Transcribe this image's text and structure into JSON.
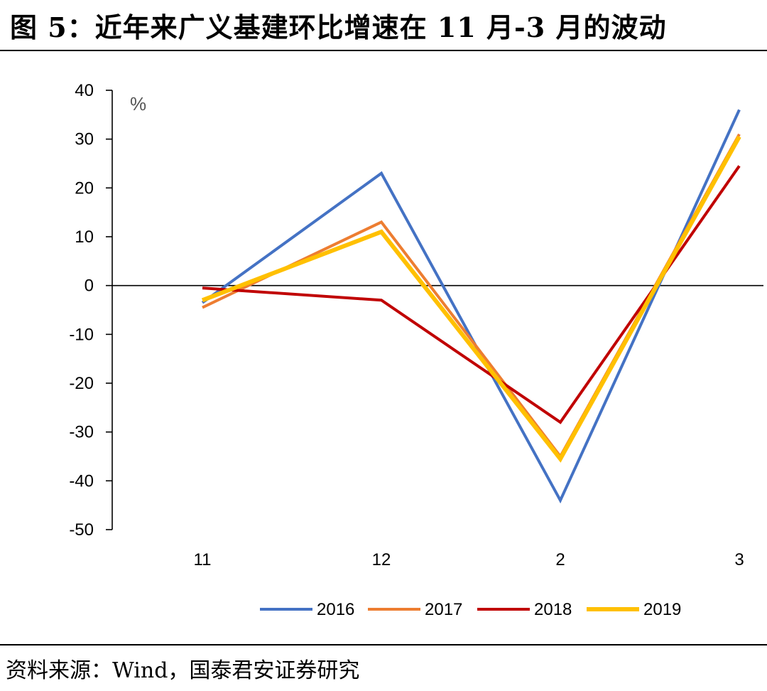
{
  "figure": {
    "title": "图 5：近年来广义基建环比增速在 11 月-3 月的波动",
    "source": "资料来源：Wind，国泰君安证券研究"
  },
  "chart_data": {
    "type": "line",
    "title": "",
    "unit": "%",
    "categories": [
      "11",
      "12",
      "2",
      "3"
    ],
    "ylim": [
      -50,
      40
    ],
    "yticks": [
      40,
      30,
      20,
      10,
      0,
      -10,
      -20,
      -30,
      -40,
      -50
    ],
    "grid": false,
    "legend": "bottom",
    "series": [
      {
        "name": "2016",
        "values": [
          -3.5,
          23,
          -44,
          36
        ],
        "color": "#4472C4"
      },
      {
        "name": "2017",
        "values": [
          -4.5,
          13,
          -35,
          31
        ],
        "color": "#ED7D31"
      },
      {
        "name": "2018",
        "values": [
          -0.5,
          -3,
          -28,
          24.5
        ],
        "color": "#C00000"
      },
      {
        "name": "2019",
        "values": [
          -3,
          11,
          -35.5,
          30.5
        ],
        "color": "#FFC000"
      }
    ]
  }
}
